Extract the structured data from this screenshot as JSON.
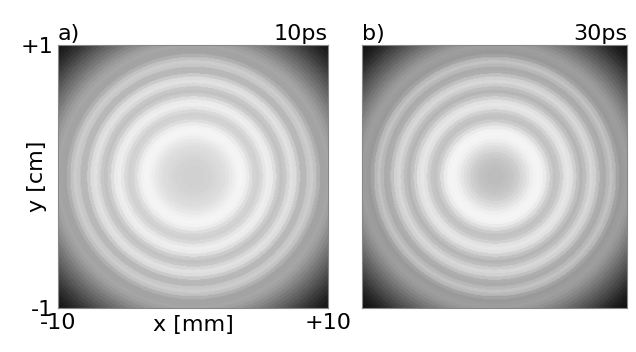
{
  "chart_data": [
    {
      "type": "heatmap",
      "panel_label": "a)",
      "title": "10ps",
      "xlabel": "x [mm]",
      "ylabel": "y [cm]",
      "xlim": [
        -10,
        10
      ],
      "ylim": [
        -1,
        1
      ],
      "xticks": [
        -10,
        {
          "value": 10,
          "label": "+10"
        }
      ],
      "yticks": [
        {
          "value": 1,
          "label": "+1"
        },
        -1
      ],
      "color": "gray",
      "clim": [
        0,
        1
      ],
      "radius": [
        0,
        0.25,
        0.5,
        0.75,
        1.0,
        1.25,
        1.5,
        1.75,
        2.0,
        2.25,
        2.5,
        2.75,
        3.0,
        3.25,
        3.5,
        3.75,
        4.0,
        4.25,
        4.5,
        4.75,
        5.0,
        5.25,
        5.5,
        5.75,
        6.0,
        6.25,
        6.5,
        6.75,
        7.0,
        7.25,
        7.5,
        7.75,
        8.0,
        8.25,
        8.5,
        8.75,
        9.0,
        9.25,
        9.5,
        9.75,
        10.0,
        10.25,
        10.5,
        10.75,
        11.0,
        11.25,
        11.5,
        11.75,
        12.0,
        12.25,
        12.5,
        12.75,
        13.0,
        13.25,
        13.5,
        13.75,
        14.0,
        14.25
      ],
      "intensity": [
        0.82,
        0.82,
        0.82,
        0.82,
        0.83,
        0.83,
        0.84,
        0.85,
        0.86,
        0.87,
        0.89,
        0.91,
        0.93,
        0.95,
        0.96,
        0.95,
        0.92,
        0.87,
        0.83,
        0.82,
        0.85,
        0.9,
        0.93,
        0.92,
        0.87,
        0.8,
        0.76,
        0.78,
        0.84,
        0.88,
        0.86,
        0.79,
        0.72,
        0.72,
        0.78,
        0.8,
        0.76,
        0.69,
        0.64,
        0.64,
        0.65,
        0.63,
        0.6,
        0.56,
        0.52,
        0.48,
        0.44,
        0.4,
        0.36,
        0.32,
        0.28,
        0.24,
        0.2,
        0.17,
        0.14,
        0.11,
        0.09,
        0.07
      ]
    },
    {
      "type": "heatmap",
      "panel_label": "b)",
      "title": "30ps",
      "xlim": [
        -10,
        10
      ],
      "ylim": [
        -1,
        1
      ],
      "tick_labels": false,
      "color": "gray",
      "clim": [
        0,
        1
      ],
      "radius": [
        0,
        0.25,
        0.5,
        0.75,
        1.0,
        1.25,
        1.5,
        1.75,
        2.0,
        2.25,
        2.5,
        2.75,
        3.0,
        3.25,
        3.5,
        3.75,
        4.0,
        4.25,
        4.5,
        4.75,
        5.0,
        5.25,
        5.5,
        5.75,
        6.0,
        6.25,
        6.5,
        6.75,
        7.0,
        7.25,
        7.5,
        7.75,
        8.0,
        8.25,
        8.5,
        8.75,
        9.0,
        9.25,
        9.5,
        9.75,
        10.0,
        10.25,
        10.5,
        10.75,
        11.0,
        11.25,
        11.5,
        11.75,
        12.0,
        12.25,
        12.5,
        12.75,
        13.0,
        13.25,
        13.5,
        13.75,
        14.0,
        14.25
      ],
      "intensity": [
        0.74,
        0.74,
        0.74,
        0.75,
        0.76,
        0.77,
        0.79,
        0.81,
        0.84,
        0.87,
        0.9,
        0.93,
        0.95,
        0.96,
        0.95,
        0.92,
        0.86,
        0.8,
        0.76,
        0.77,
        0.82,
        0.88,
        0.9,
        0.88,
        0.82,
        0.75,
        0.71,
        0.74,
        0.8,
        0.84,
        0.82,
        0.75,
        0.68,
        0.67,
        0.72,
        0.76,
        0.72,
        0.64,
        0.6,
        0.61,
        0.62,
        0.6,
        0.57,
        0.53,
        0.49,
        0.45,
        0.41,
        0.37,
        0.33,
        0.29,
        0.25,
        0.21,
        0.17,
        0.14,
        0.11,
        0.09,
        0.07,
        0.05
      ]
    }
  ]
}
